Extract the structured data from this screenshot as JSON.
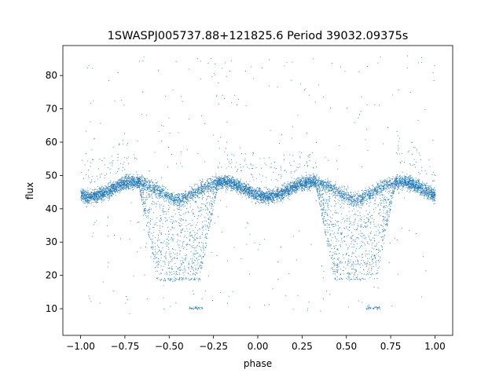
{
  "chart_data": {
    "type": "scatter",
    "title": "1SWASPJ005737.88+121825.6 Period 39032.09375s",
    "xlabel": "phase",
    "ylabel": "flux",
    "xlim": [
      -1.1,
      1.1
    ],
    "ylim": [
      2,
      89
    ],
    "xticks": [
      -1.0,
      -0.75,
      -0.5,
      -0.25,
      0.0,
      0.25,
      0.5,
      0.75,
      1.0
    ],
    "xtick_labels": [
      "−1.00",
      "−0.75",
      "−0.50",
      "−0.25",
      "0.00",
      "0.25",
      "0.50",
      "0.75",
      "1.00"
    ],
    "yticks": [
      10,
      20,
      30,
      40,
      50,
      60,
      70,
      80
    ],
    "ytick_labels": [
      "10",
      "20",
      "30",
      "40",
      "50",
      "60",
      "70",
      "80"
    ],
    "grid": false,
    "color": "#1f77b4",
    "series": [
      {
        "marker": "point",
        "description_points": {
          "phase": [
            -1.0,
            -0.9,
            -0.8,
            -0.7,
            -0.6,
            -0.55,
            -0.5,
            -0.45,
            -0.4,
            -0.35,
            -0.3,
            -0.2,
            -0.1,
            0.0,
            0.1,
            0.2,
            0.3,
            0.4,
            0.45,
            0.5,
            0.55,
            0.6,
            0.65,
            0.7,
            0.8,
            0.9,
            1.0
          ],
          "flux_upper_band": [
            45,
            46,
            47,
            48,
            47,
            45,
            44,
            45,
            47,
            48,
            48,
            47,
            46,
            44,
            46,
            48,
            48,
            47,
            45,
            44,
            45,
            47,
            48,
            48,
            47,
            46,
            45
          ],
          "flux_eclipse_min": [
            44,
            44,
            44,
            40,
            25,
            19,
            19,
            19,
            19,
            19,
            30,
            44,
            44,
            44,
            44,
            44,
            44,
            32,
            19,
            19,
            19,
            19,
            19,
            30,
            44,
            44,
            44
          ]
        }
      }
    ]
  }
}
